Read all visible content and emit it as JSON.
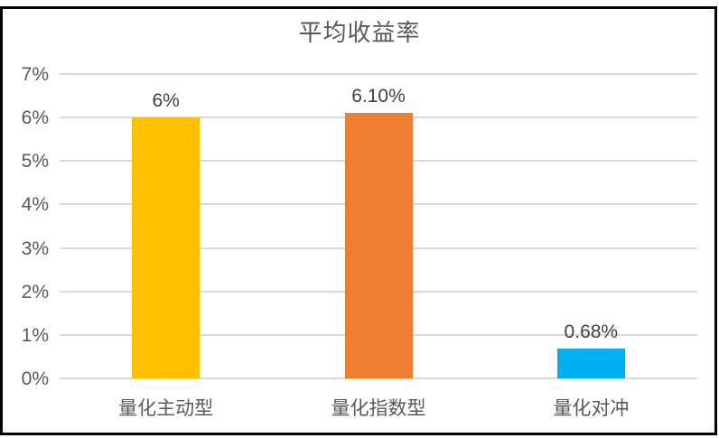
{
  "chart_data": {
    "type": "bar",
    "title": "平均收益率",
    "categories": [
      "量化主动型",
      "量化指数型",
      "量化对冲"
    ],
    "values": [
      6,
      6.1,
      0.68
    ],
    "value_labels": [
      "6%",
      "6.10%",
      "0.68%"
    ],
    "bar_colors": [
      "#FFC000",
      "#ED7D31",
      "#00B0F0"
    ],
    "ylim": [
      0,
      7
    ],
    "ytick_step": 1,
    "ytick_labels": [
      "0%",
      "1%",
      "2%",
      "3%",
      "4%",
      "5%",
      "6%",
      "7%"
    ],
    "grid": true,
    "legend": "none",
    "colors": {
      "gridline": "#D9D9D9",
      "axis_line": "#D9D9D9",
      "axis_text": "#595959",
      "value_label_text": "#404040",
      "title_text": "#595959",
      "frame_border": "#000000",
      "background": "#FFFFFF"
    }
  }
}
